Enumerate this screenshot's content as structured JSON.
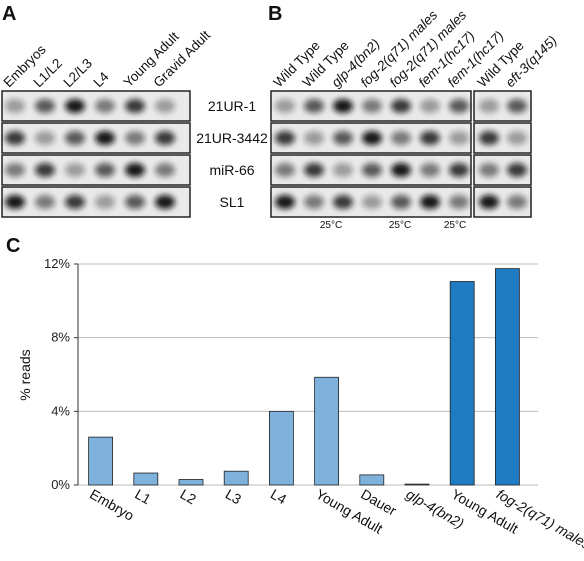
{
  "panel_a": {
    "label": "A",
    "lanes": [
      "Embryos",
      "L1/L2",
      "L2/L3",
      "L4",
      "Young Adult",
      "Gravid Adult"
    ],
    "rows": [
      "21UR-1",
      "21UR-3442",
      "miR-66",
      "SL1"
    ]
  },
  "panel_b": {
    "label": "B",
    "lanes": [
      "Wild Type",
      "Wild Type",
      "glp-4(bn2)",
      "fog-2(q71) males",
      "fog-2(q71) males",
      "fem-1(hc17)",
      "fem-1(hc17)",
      "Wild Type",
      "eft-3(q145)"
    ],
    "temperatures": [
      "25°C",
      "25°C",
      "25°C"
    ]
  },
  "chart_data": {
    "type": "bar",
    "panel_label": "C",
    "ylabel": "% reads",
    "categories": [
      "Embryo",
      "L1",
      "L2",
      "L3",
      "L4",
      "Young Adult",
      "Dauer",
      "glp-4(bn2)",
      "Young Adult",
      "fog-2(q71) males"
    ],
    "values": [
      2.6,
      0.65,
      0.3,
      0.75,
      4.0,
      5.85,
      0.55,
      0.05,
      11.05,
      11.75
    ],
    "colors": [
      "#7fb1dd",
      "#7fb1dd",
      "#7fb1dd",
      "#7fb1dd",
      "#7fb1dd",
      "#7fb1dd",
      "#7fb1dd",
      "#7fb1dd",
      "#1f7bc2",
      "#1f7bc2"
    ],
    "ylim": [
      0,
      12
    ],
    "yticks": [
      {
        "value": 0,
        "label": "0%"
      },
      {
        "value": 4,
        "label": "4%"
      },
      {
        "value": 8,
        "label": "8%"
      },
      {
        "value": 12,
        "label": "12%"
      }
    ],
    "grid": true
  }
}
